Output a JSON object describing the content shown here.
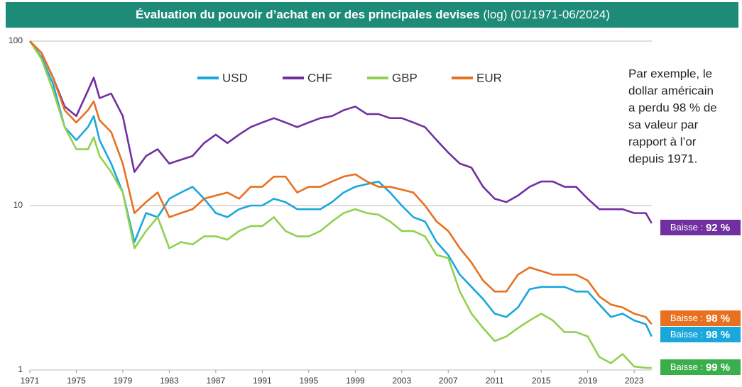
{
  "chart_data": {
    "type": "line",
    "title": "Évaluation du pouvoir d’achat en or des principales devises",
    "title_suffix": "(log) (01/1971-06/2024)",
    "log_y": true,
    "grid": true,
    "legend": "top",
    "x": [
      1971,
      1972,
      1973,
      1974,
      1975,
      1976,
      1976.5,
      1977,
      1978,
      1979,
      1980,
      1981,
      1982,
      1983,
      1984,
      1985,
      1986,
      1987,
      1988,
      1989,
      1990,
      1991,
      1992,
      1993,
      1994,
      1995,
      1996,
      1997,
      1998,
      1999,
      2000,
      2001,
      2002,
      2003,
      2004,
      2005,
      2006,
      2007,
      2008,
      2009,
      2010,
      2011,
      2012,
      2013,
      2014,
      2015,
      2016,
      2017,
      2018,
      2019,
      2020,
      2021,
      2022,
      2023,
      2024,
      2024.5
    ],
    "xlim": [
      1971,
      2024.7
    ],
    "xticks": [
      1971,
      1975,
      1979,
      1983,
      1987,
      1991,
      1995,
      1999,
      2003,
      2007,
      2011,
      2015,
      2019,
      2023
    ],
    "ylim": [
      1,
      100
    ],
    "yticks": [
      1,
      10,
      100
    ],
    "series": [
      {
        "name": "USD",
        "color": "#1aa7dc",
        "values": [
          100,
          80,
          55,
          30,
          25,
          30,
          35,
          25,
          18,
          12,
          6,
          9,
          8.5,
          11,
          12,
          13,
          11,
          9,
          8.5,
          9.5,
          10,
          10,
          11,
          10.5,
          9.5,
          9.5,
          9.5,
          10.5,
          12,
          13,
          13.5,
          14,
          12,
          10,
          8.5,
          8,
          6,
          5,
          3.8,
          3.2,
          2.7,
          2.2,
          2.1,
          2.4,
          3.1,
          3.2,
          3.2,
          3.2,
          3,
          3,
          2.5,
          2.1,
          2.2,
          2,
          1.9,
          1.6
        ]
      },
      {
        "name": "CHF",
        "color": "#7030a0",
        "values": [
          100,
          85,
          60,
          40,
          35,
          50,
          60,
          45,
          48,
          35,
          16,
          20,
          22,
          18,
          19,
          20,
          24,
          27,
          24,
          27,
          30,
          32,
          34,
          32,
          30,
          32,
          34,
          35,
          38,
          40,
          36,
          36,
          34,
          34,
          32,
          30,
          25,
          21,
          18,
          17,
          13,
          11,
          10.5,
          11.5,
          13,
          14,
          14,
          13,
          13,
          11,
          9.5,
          9.5,
          9.5,
          9,
          9,
          7.8
        ]
      },
      {
        "name": "GBP",
        "color": "#92d050",
        "values": [
          100,
          78,
          50,
          30,
          22,
          22,
          26,
          20,
          16,
          12,
          5.5,
          7,
          8.5,
          5.5,
          6,
          5.8,
          6.5,
          6.5,
          6.2,
          7,
          7.5,
          7.5,
          8.5,
          7,
          6.5,
          6.5,
          7,
          8,
          9,
          9.5,
          9,
          8.8,
          8,
          7,
          7,
          6.5,
          5,
          4.8,
          3,
          2.2,
          1.8,
          1.5,
          1.6,
          1.8,
          2,
          2.2,
          2,
          1.7,
          1.7,
          1.6,
          1.2,
          1.1,
          1.25,
          1.05,
          1.03,
          1.03
        ]
      },
      {
        "name": "EUR",
        "color": "#e8701f",
        "values": [
          100,
          85,
          60,
          38,
          32,
          38,
          43,
          33,
          28,
          18,
          9,
          10.5,
          12,
          8.5,
          9,
          9.5,
          11,
          11.5,
          12,
          11,
          13,
          13,
          15,
          15,
          12,
          13,
          13,
          14,
          15,
          15.5,
          14,
          13,
          13,
          12.5,
          12,
          10,
          8,
          7,
          5.5,
          4.5,
          3.5,
          3,
          3,
          3.8,
          4.2,
          4,
          3.8,
          3.8,
          3.8,
          3.5,
          2.8,
          2.5,
          2.4,
          2.2,
          2.1,
          1.9
        ]
      }
    ],
    "annotation": [
      "Par exemple, le",
      "dollar américain",
      "a perdu 98 % de",
      "sa valeur par",
      "rapport à l’or",
      "depuis 1971."
    ],
    "end_labels": [
      {
        "prefix": "Baisse :",
        "text": "92 %",
        "color": "#7030a0"
      },
      {
        "prefix": "Baisse :",
        "text": "98 %",
        "color": "#e8701f"
      },
      {
        "prefix": "Baisse :",
        "text": "98 %",
        "color": "#1aa7dc"
      },
      {
        "prefix": "Baisse :",
        "text": "99 %",
        "color": "#3aae4a"
      }
    ]
  }
}
